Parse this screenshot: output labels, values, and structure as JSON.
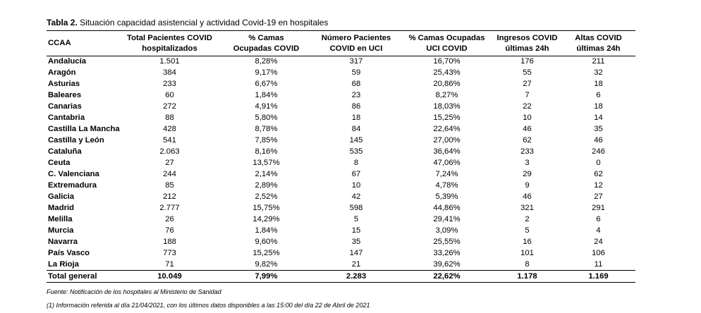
{
  "caption": {
    "label": "Tabla 2.",
    "text": " Situación capacidad asistencial y actividad Covid-19 en hospitales"
  },
  "headers": [
    [
      "CCAA"
    ],
    [
      "Total Pacientes COVID",
      "hospitalizados"
    ],
    [
      "% Camas",
      "Ocupadas COVID"
    ],
    [
      "Número Pacientes",
      "COVID en UCI"
    ],
    [
      "% Camas Ocupadas",
      "UCI COVID"
    ],
    [
      "Ingresos COVID",
      "últimas 24h"
    ],
    [
      "Altas COVID",
      "últimas 24h"
    ]
  ],
  "rows": [
    [
      "Andalucía",
      "1.501",
      "8,28%",
      "317",
      "16,70%",
      "176",
      "211"
    ],
    [
      "Aragón",
      "384",
      "9,17%",
      "59",
      "25,43%",
      "55",
      "32"
    ],
    [
      "Asturias",
      "233",
      "6,67%",
      "68",
      "20,86%",
      "27",
      "18"
    ],
    [
      "Baleares",
      "60",
      "1,84%",
      "23",
      "8,27%",
      "7",
      "6"
    ],
    [
      "Canarias",
      "272",
      "4,91%",
      "86",
      "18,03%",
      "22",
      "18"
    ],
    [
      "Cantabria",
      "88",
      "5,80%",
      "18",
      "15,25%",
      "10",
      "14"
    ],
    [
      "Castilla La Mancha",
      "428",
      "8,78%",
      "84",
      "22,64%",
      "46",
      "35"
    ],
    [
      "Castilla y León",
      "541",
      "7,85%",
      "145",
      "27,00%",
      "62",
      "46"
    ],
    [
      "Cataluña",
      "2.063",
      "8,16%",
      "535",
      "36,64%",
      "233",
      "246"
    ],
    [
      "Ceuta",
      "27",
      "13,57%",
      "8",
      "47,06%",
      "3",
      "0"
    ],
    [
      "C. Valenciana",
      "244",
      "2,14%",
      "67",
      "7,24%",
      "29",
      "62"
    ],
    [
      "Extremadura",
      "85",
      "2,89%",
      "10",
      "4,78%",
      "9",
      "12"
    ],
    [
      "Galicia",
      "212",
      "2,52%",
      "42",
      "5,39%",
      "46",
      "27"
    ],
    [
      "Madrid",
      "2.777",
      "15,75%",
      "598",
      "44,86%",
      "321",
      "291"
    ],
    [
      "Melilla",
      "26",
      "14,29%",
      "5",
      "29,41%",
      "2",
      "6"
    ],
    [
      "Murcia",
      "76",
      "1,84%",
      "15",
      "3,09%",
      "5",
      "4"
    ],
    [
      "Navarra",
      "188",
      "9,60%",
      "35",
      "25,55%",
      "16",
      "24"
    ],
    [
      "País Vasco",
      "773",
      "15,25%",
      "147",
      "33,26%",
      "101",
      "106"
    ],
    [
      "La Rioja",
      "71",
      "9,82%",
      "21",
      "39,62%",
      "8",
      "11"
    ]
  ],
  "total": [
    "Total general",
    "10.049",
    "7,99%",
    "2.283",
    "22,62%",
    "1.178",
    "1.169"
  ],
  "notes": {
    "source": "Fuente: Notificación de los hospitales al Ministerio de Sanidad",
    "info": "(1) Información referida al día 21/04/2021, con los últimos datos disponibles a las 15:00 del día 22 de Abril de 2021"
  }
}
